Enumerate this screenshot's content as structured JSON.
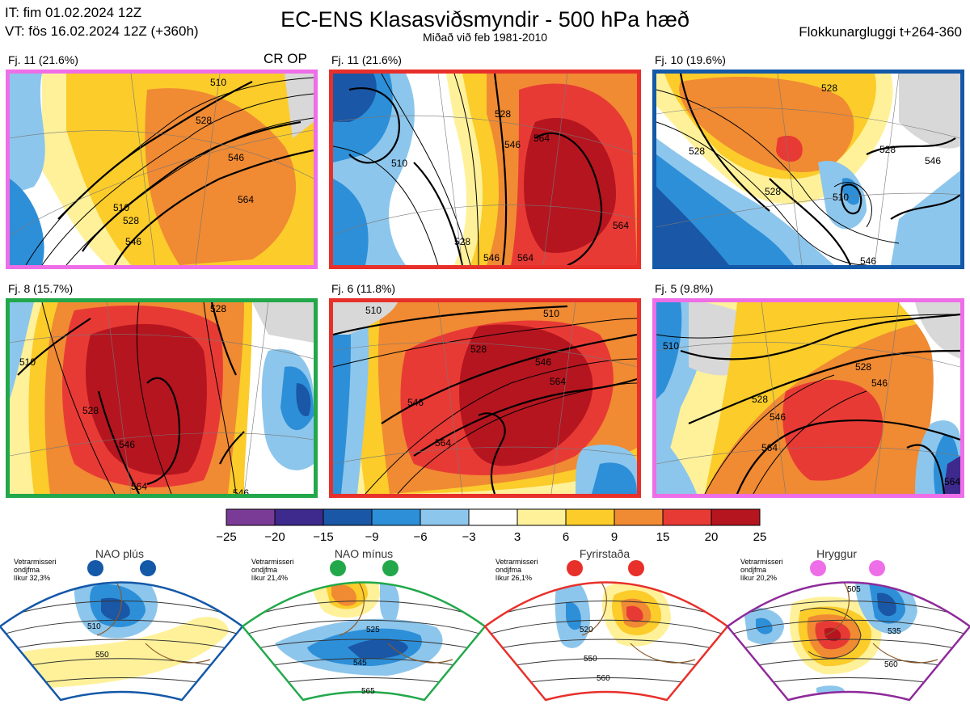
{
  "header": {
    "it_line": "IT: fim 01.02.2024 12Z",
    "vt_line": "VT: fös 16.02.2024 12Z  (+360h)",
    "title": "EC-ENS Klasasviðsmyndir - 500 hPa hæð",
    "subtitle": "Miðað við feb 1981-2010",
    "window": "Flokkunargluggi t+264-360"
  },
  "clusters": [
    {
      "label": "Fj. 11 (21.6%)",
      "border_color": "#ee6ee8",
      "extra": "CR OP",
      "contour_labels": [
        "510",
        "528",
        "546",
        "564",
        "510",
        "528",
        "546"
      ]
    },
    {
      "label": "Fj. 11 (21.6%)",
      "border_color": "#e8302a",
      "extra": "",
      "contour_labels": [
        "510",
        "528",
        "546",
        "564",
        "564",
        "528",
        "546",
        "564"
      ]
    },
    {
      "label": "Fj. 10 (19.6%)",
      "border_color": "#1458a8",
      "extra": "",
      "contour_labels": [
        "528",
        "528",
        "528",
        "510",
        "528",
        "546",
        "546"
      ]
    },
    {
      "label": "Fj. 8 (15.7%)",
      "border_color": "#22a84a",
      "extra": "",
      "contour_labels": [
        "510",
        "528",
        "546",
        "564",
        "546",
        "528"
      ]
    },
    {
      "label": "Fj. 6 (11.8%)",
      "border_color": "#e8302a",
      "extra": "",
      "contour_labels": [
        "510",
        "510",
        "528",
        "546",
        "564",
        "546",
        "564"
      ]
    },
    {
      "label": "Fj. 5 (9.8%)",
      "border_color": "#ee6ee8",
      "extra": "",
      "contour_labels": [
        "510",
        "528",
        "528",
        "546",
        "546",
        "564",
        "564"
      ]
    }
  ],
  "colorbar": {
    "ticks": [
      "−25",
      "−20",
      "−15",
      "−9",
      "−6",
      "−3",
      "3",
      "6",
      "9",
      "15",
      "20",
      "25"
    ],
    "colors": [
      "#7a3b96",
      "#3d2a8c",
      "#1a57a6",
      "#2d8fd8",
      "#8dc6ec",
      "#ffffff",
      "#fff19a",
      "#fbcc2a",
      "#f08a33",
      "#e83a35",
      "#b5151f"
    ]
  },
  "regimes": [
    {
      "name": "NAO plús",
      "color": "#1458a8",
      "note": [
        "Vetrarmisseri",
        "ondjfma",
        "líkur 32,3%"
      ],
      "labels": [
        "510",
        "550"
      ]
    },
    {
      "name": "NAO mínus",
      "color": "#22a84a",
      "note": [
        "Vetrarmisseri",
        "ondjfma",
        "líkur 21,4%"
      ],
      "labels": [
        "525",
        "545",
        "565"
      ]
    },
    {
      "name": "Fyrirstaða",
      "color": "#e8302a",
      "note": [
        "Vetrarmisseri",
        "ondjfma",
        "líkur 26,1%"
      ],
      "labels": [
        "520",
        "550",
        "560"
      ]
    },
    {
      "name": "Hryggur",
      "color": "#8e2a9a",
      "dot_color": "#ee6ee8",
      "note": [
        "Vetrarmisseri",
        "ondjfma",
        "líkur 20,2%"
      ],
      "labels": [
        "505",
        "535",
        "560"
      ]
    }
  ]
}
